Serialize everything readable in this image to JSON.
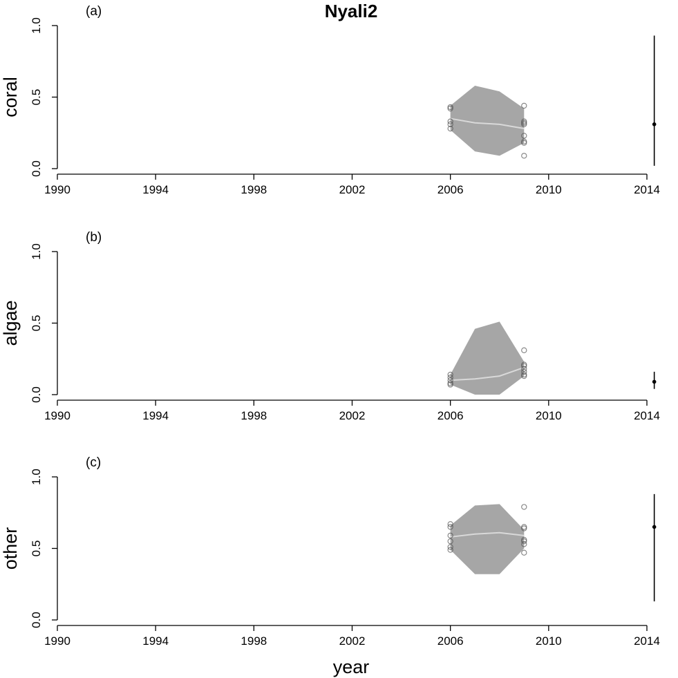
{
  "title": "Nyali2",
  "xlabel": "year",
  "colors": {
    "band": "#a6a6a6",
    "median_line": "#d9d9d9",
    "points": "#555555",
    "axis": "#000000"
  },
  "chart_data": [
    {
      "type": "area",
      "panel_label": "(a)",
      "ylabel": "coral",
      "xlim": [
        1990,
        2014
      ],
      "ylim": [
        0,
        1
      ],
      "x_ticks": [
        "1990",
        "1994",
        "1998",
        "2002",
        "2006",
        "2010",
        "2014"
      ],
      "y_ticks": [
        "0.0",
        "0.5",
        "1.0"
      ],
      "band": {
        "x": [
          2006,
          2007,
          2008,
          2009
        ],
        "upper": [
          0.44,
          0.58,
          0.54,
          0.42
        ],
        "lower": [
          0.27,
          0.12,
          0.09,
          0.18
        ]
      },
      "median": {
        "x": [
          2006,
          2007,
          2008,
          2009
        ],
        "y": [
          0.35,
          0.32,
          0.31,
          0.28
        ]
      },
      "observations": [
        {
          "x": 2006,
          "y": 0.43
        },
        {
          "x": 2006,
          "y": 0.42
        },
        {
          "x": 2006,
          "y": 0.33
        },
        {
          "x": 2006,
          "y": 0.31
        },
        {
          "x": 2006,
          "y": 0.28
        },
        {
          "x": 2009,
          "y": 0.44
        },
        {
          "x": 2009,
          "y": 0.33
        },
        {
          "x": 2009,
          "y": 0.32
        },
        {
          "x": 2009,
          "y": 0.31
        },
        {
          "x": 2009,
          "y": 0.23
        },
        {
          "x": 2009,
          "y": 0.19
        },
        {
          "x": 2009,
          "y": 0.18
        },
        {
          "x": 2009,
          "y": 0.09
        }
      ],
      "forecast": {
        "x": 2014.3,
        "y": 0.31,
        "lower": 0.02,
        "upper": 0.93
      }
    },
    {
      "type": "area",
      "panel_label": "(b)",
      "ylabel": "algae",
      "xlim": [
        1990,
        2014
      ],
      "ylim": [
        0,
        1
      ],
      "x_ticks": [
        "1990",
        "1994",
        "1998",
        "2002",
        "2006",
        "2010",
        "2014"
      ],
      "y_ticks": [
        "0.0",
        "0.5",
        "1.0"
      ],
      "band": {
        "x": [
          2006,
          2007,
          2008,
          2009
        ],
        "upper": [
          0.14,
          0.46,
          0.51,
          0.23
        ],
        "lower": [
          0.07,
          0.0,
          0.0,
          0.13
        ]
      },
      "median": {
        "x": [
          2006,
          2007,
          2008,
          2009
        ],
        "y": [
          0.1,
          0.11,
          0.13,
          0.19
        ]
      },
      "observations": [
        {
          "x": 2006,
          "y": 0.14
        },
        {
          "x": 2006,
          "y": 0.12
        },
        {
          "x": 2006,
          "y": 0.1
        },
        {
          "x": 2006,
          "y": 0.08
        },
        {
          "x": 2006,
          "y": 0.07
        },
        {
          "x": 2009,
          "y": 0.31
        },
        {
          "x": 2009,
          "y": 0.21
        },
        {
          "x": 2009,
          "y": 0.2
        },
        {
          "x": 2009,
          "y": 0.18
        },
        {
          "x": 2009,
          "y": 0.16
        },
        {
          "x": 2009,
          "y": 0.14
        },
        {
          "x": 2009,
          "y": 0.13
        }
      ],
      "forecast": {
        "x": 2014.3,
        "y": 0.09,
        "lower": 0.04,
        "upper": 0.16
      }
    },
    {
      "type": "area",
      "panel_label": "(c)",
      "ylabel": "other",
      "xlim": [
        1990,
        2014
      ],
      "ylim": [
        0,
        1
      ],
      "x_ticks": [
        "1990",
        "1994",
        "1998",
        "2002",
        "2006",
        "2010",
        "2014"
      ],
      "y_ticks": [
        "0.0",
        "0.5",
        "1.0"
      ],
      "band": {
        "x": [
          2006,
          2007,
          2008,
          2009
        ],
        "upper": [
          0.66,
          0.8,
          0.81,
          0.63
        ],
        "lower": [
          0.49,
          0.32,
          0.32,
          0.5
        ]
      },
      "median": {
        "x": [
          2006,
          2007,
          2008,
          2009
        ],
        "y": [
          0.58,
          0.6,
          0.61,
          0.59
        ]
      },
      "observations": [
        {
          "x": 2006,
          "y": 0.67
        },
        {
          "x": 2006,
          "y": 0.65
        },
        {
          "x": 2006,
          "y": 0.59
        },
        {
          "x": 2006,
          "y": 0.55
        },
        {
          "x": 2006,
          "y": 0.51
        },
        {
          "x": 2006,
          "y": 0.49
        },
        {
          "x": 2009,
          "y": 0.79
        },
        {
          "x": 2009,
          "y": 0.65
        },
        {
          "x": 2009,
          "y": 0.64
        },
        {
          "x": 2009,
          "y": 0.56
        },
        {
          "x": 2009,
          "y": 0.55
        },
        {
          "x": 2009,
          "y": 0.53
        },
        {
          "x": 2009,
          "y": 0.47
        }
      ],
      "forecast": {
        "x": 2014.3,
        "y": 0.65,
        "lower": 0.13,
        "upper": 0.88
      }
    }
  ]
}
